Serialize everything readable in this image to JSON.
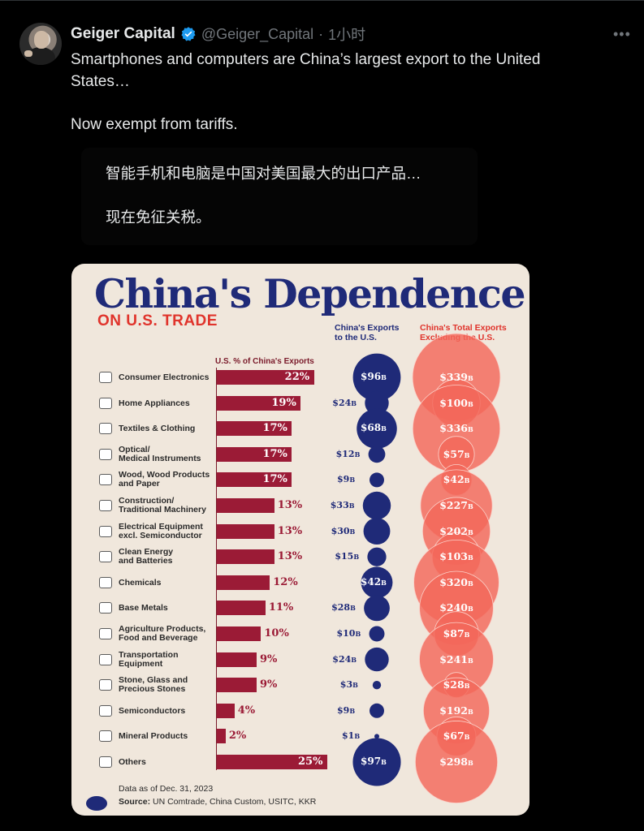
{
  "tweet": {
    "author_name": "Geiger Capital",
    "handle": "@Geiger_Capital",
    "separator": "·",
    "time": "1小时",
    "more_icon": "more-icon",
    "text_line1": "Smartphones and computers are China’s largest export to the United",
    "text_line2": "States…",
    "text_line3": "Now exempt from tariffs.",
    "translation_line1": "智能手机和电脑是中国对美国最大的出口产品…",
    "translation_line2": "现在免征关税。"
  },
  "infographic": {
    "title": "China's Dependence",
    "subtitle": "ON U.S. TRADE",
    "col_us_line1": "China's Exports",
    "col_us_line2": "to the U.S.",
    "col_other_line1": "China's Total Exports",
    "col_other_line2": "Excluding the U.S.",
    "col_pct": "U.S. % of China's Exports",
    "footer_date": "Data as of Dec. 31, 2023",
    "footer_source_label": "Source:",
    "footer_source": " UN Comtrade, China Custom, USITC, KKR",
    "colors": {
      "navy": "#1f2a78",
      "red": "#e0342c",
      "maroon": "#9b1b36",
      "salmon": "#f3685a",
      "background": "#f0e7dc"
    }
  },
  "chart_data": {
    "type": "bar",
    "title": "China's Dependence",
    "subtitle": "ON U.S. TRADE",
    "value_unit": "B",
    "categories": [
      "Consumer Electronics",
      "Home Appliances",
      "Textiles & Clothing",
      "Optical/\nMedical Instruments",
      "Wood, Wood Products\nand Paper",
      "Construction/\nTraditional Machinery",
      "Electrical Equipment\nexcl. Semiconductor",
      "Clean Energy\nand Batteries",
      "Chemicals",
      "Base Metals",
      "Agriculture Products,\nFood and Beverage",
      "Transportation\nEquipment",
      "Stone, Glass and\nPrecious Stones",
      "Semiconductors",
      "Mineral Products",
      "Others"
    ],
    "icons": [
      "tv-icon",
      "sofa-icon",
      "shirt-icon",
      "microscope-icon",
      "wood-icon",
      "crane-icon",
      "plug-icon",
      "battery-icon",
      "flask-icon",
      "metal-bars-icon",
      "wheat-icon",
      "truck-icon",
      "gem-icon",
      "chip-icon",
      "mineral-icon",
      "box-icon"
    ],
    "series": [
      {
        "name": "U.S. % of China's Exports",
        "values": [
          22,
          19,
          17,
          17,
          17,
          13,
          13,
          13,
          12,
          11,
          10,
          9,
          9,
          4,
          2,
          25
        ]
      },
      {
        "name": "China's Exports to the U.S.",
        "values": [
          96,
          24,
          68,
          12,
          9,
          33,
          30,
          15,
          42,
          28,
          10,
          24,
          3,
          9,
          1,
          97
        ]
      },
      {
        "name": "China's Total Exports Excluding the U.S.",
        "values": [
          339,
          100,
          336,
          57,
          42,
          227,
          202,
          103,
          320,
          240,
          87,
          241,
          28,
          192,
          67,
          298
        ]
      }
    ],
    "pct_labels": [
      "22%",
      "19%",
      "17%",
      "17%",
      "17%",
      "13%",
      "13%",
      "13%",
      "12%",
      "11%",
      "10%",
      "9%",
      "9%",
      "4%",
      "2%",
      "25%"
    ],
    "us_labels": [
      "$96",
      "$24",
      "$68",
      "$12",
      "$9",
      "$33",
      "$30",
      "$15",
      "$42",
      "$28",
      "$10",
      "$24",
      "$3",
      "$9",
      "$1",
      "$97"
    ],
    "other_labels": [
      "$339",
      "$100",
      "$336",
      "$57",
      "$42",
      "$227",
      "$202",
      "$103",
      "$320",
      "$240",
      "$87",
      "$241",
      "$28",
      "$192",
      "$67",
      "$298"
    ],
    "pct_max": 25
  }
}
